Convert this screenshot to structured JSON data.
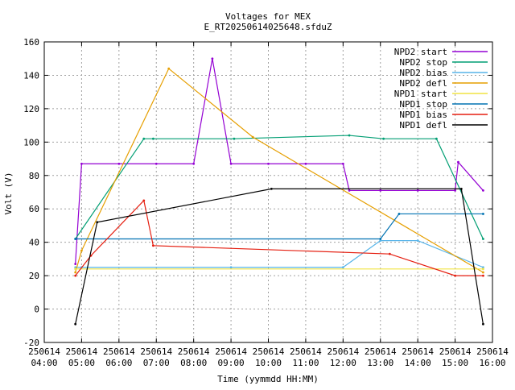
{
  "chart_data": {
    "type": "line",
    "title": "Voltages for MEX",
    "subtitle": "E_RT20250614025648.sfduZ",
    "xlabel": "Time (yymmdd HH:MM)",
    "ylabel": "Volt (V)",
    "xlim": [
      "250614 04:00",
      "250614 16:00"
    ],
    "ylim": [
      -20,
      160
    ],
    "grid": true,
    "legend_position": "top-right",
    "x_ticks": [
      {
        "date": "250614",
        "time": "04:00"
      },
      {
        "date": "250614",
        "time": "05:00"
      },
      {
        "date": "250614",
        "time": "06:00"
      },
      {
        "date": "250614",
        "time": "07:00"
      },
      {
        "date": "250614",
        "time": "08:00"
      },
      {
        "date": "250614",
        "time": "09:00"
      },
      {
        "date": "250614",
        "time": "10:00"
      },
      {
        "date": "250614",
        "time": "11:00"
      },
      {
        "date": "250614",
        "time": "12:00"
      },
      {
        "date": "250614",
        "time": "13:00"
      },
      {
        "date": "250614",
        "time": "14:00"
      },
      {
        "date": "250614",
        "time": "15:00"
      },
      {
        "date": "250614",
        "time": "16:00"
      }
    ],
    "y_ticks": [
      "-20",
      "0",
      "20",
      "40",
      "60",
      "80",
      "100",
      "120",
      "140",
      "160"
    ],
    "series": [
      {
        "name": "NPD2 start",
        "color": "#9400d3",
        "x": [
          "04:50",
          "05:00",
          "06:00",
          "07:00",
          "08:00",
          "08:30",
          "09:00",
          "10:00",
          "11:00",
          "12:00",
          "12:10",
          "13:00",
          "14:00",
          "15:00",
          "15:05",
          "15:45"
        ],
        "y": [
          27,
          87,
          87,
          87,
          87,
          150,
          87,
          87,
          87,
          87,
          71,
          71,
          71,
          71,
          88,
          71
        ]
      },
      {
        "name": "NPD2 stop",
        "color": "#009e73",
        "x": [
          "04:50",
          "06:40",
          "06:55",
          "09:05",
          "12:10",
          "13:05",
          "14:30",
          "15:45"
        ],
        "y": [
          42,
          102,
          102,
          102,
          104,
          102,
          102,
          42
        ]
      },
      {
        "name": "NPD2 bias",
        "color": "#56b4e9",
        "x": [
          "04:50",
          "05:00",
          "09:00",
          "12:00",
          "13:00",
          "14:00",
          "15:45"
        ],
        "y": [
          25,
          25,
          25,
          25,
          41,
          41,
          25
        ]
      },
      {
        "name": "NPD2 defl",
        "color": "#e69f00",
        "x": [
          "04:50",
          "05:00",
          "07:20",
          "09:35",
          "15:45"
        ],
        "y": [
          22,
          35,
          144,
          103,
          22
        ]
      },
      {
        "name": "NPD1 start",
        "color": "#f0e442",
        "x": [
          "04:50",
          "15:45"
        ],
        "y": [
          24,
          24
        ]
      },
      {
        "name": "NPD1 stop",
        "color": "#0072b2",
        "x": [
          "04:50",
          "13:00",
          "13:30",
          "15:45"
        ],
        "y": [
          42,
          42,
          57,
          57
        ]
      },
      {
        "name": "NPD1 bias",
        "color": "#e51e10",
        "x": [
          "04:50",
          "05:15",
          "06:40",
          "06:55",
          "13:15",
          "15:00",
          "15:45"
        ],
        "y": [
          20,
          32,
          65,
          38,
          33,
          20,
          20
        ]
      },
      {
        "name": "NPD1 defl",
        "color": "#000000",
        "x": [
          "04:50",
          "05:25",
          "10:05",
          "15:10",
          "15:45"
        ],
        "y": [
          -9,
          52,
          72,
          72,
          -9
        ]
      }
    ]
  }
}
